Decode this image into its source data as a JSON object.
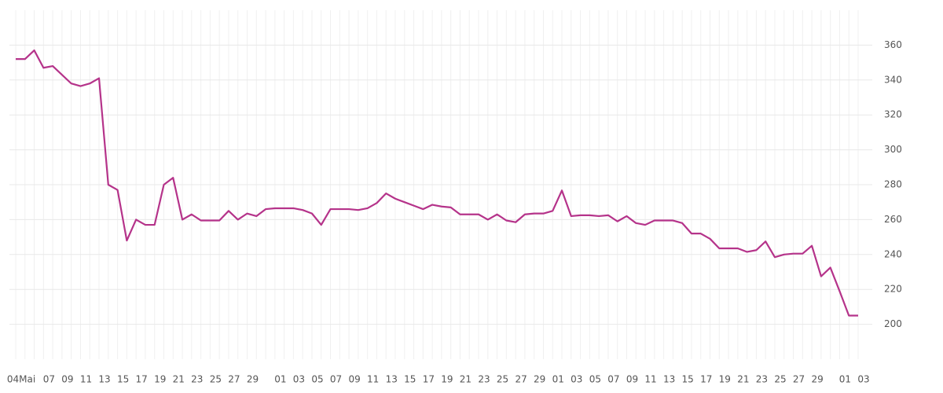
{
  "chart_data": {
    "type": "line",
    "categories": [
      "04Mai",
      null,
      null,
      "07",
      null,
      "09",
      null,
      "11",
      null,
      "13",
      null,
      "15",
      null,
      "17",
      null,
      "19",
      null,
      "21",
      null,
      "23",
      null,
      "25",
      null,
      "27",
      null,
      "29",
      null,
      null,
      "01",
      null,
      "03",
      null,
      "05",
      null,
      "07",
      null,
      "09",
      null,
      "11",
      null,
      "13",
      null,
      "15",
      null,
      "17",
      null,
      "19",
      null,
      "21",
      null,
      "23",
      null,
      "25",
      null,
      "27",
      null,
      "29",
      null,
      "01",
      null,
      "03",
      null,
      "05",
      null,
      "07",
      null,
      "09",
      null,
      "11",
      null,
      "13",
      null,
      "15",
      null,
      "17",
      null,
      "19",
      null,
      "21",
      null,
      "23",
      null,
      "25",
      null,
      "27",
      null,
      "29",
      null,
      null,
      "01",
      null,
      "03"
    ],
    "series": [
      {
        "color": "#b5338a",
        "values": [
          352,
          352,
          357,
          347,
          348,
          343,
          338,
          336.5,
          338,
          341,
          280,
          277,
          248,
          260,
          257,
          257,
          280,
          284,
          260,
          263,
          259.5,
          259.5,
          259.5,
          265,
          260,
          263.5,
          262,
          266,
          266.5,
          266.5,
          266.5,
          265.5,
          263.5,
          257,
          266,
          266,
          266,
          265.5,
          266.5,
          269.5,
          275,
          272,
          270,
          268,
          266,
          268.5,
          267.5,
          267,
          263,
          263,
          263,
          260,
          263,
          259.5,
          258.5,
          263,
          263.5,
          263.5,
          265,
          276.7,
          262,
          262.5,
          262.5,
          262,
          262.5,
          259,
          262,
          258,
          257,
          259.5,
          259.5,
          259.5,
          258,
          252,
          252,
          249,
          243.5,
          243.5,
          243.5,
          241.5,
          242.5,
          247.5,
          238.5,
          240,
          240.5,
          240.5,
          245,
          227.5,
          232.5,
          219,
          205,
          205
        ]
      }
    ],
    "ylim": [
      180,
      380
    ],
    "yticks": [
      200,
      220,
      240,
      260,
      280,
      300,
      320,
      340,
      360
    ],
    "grid": true
  }
}
